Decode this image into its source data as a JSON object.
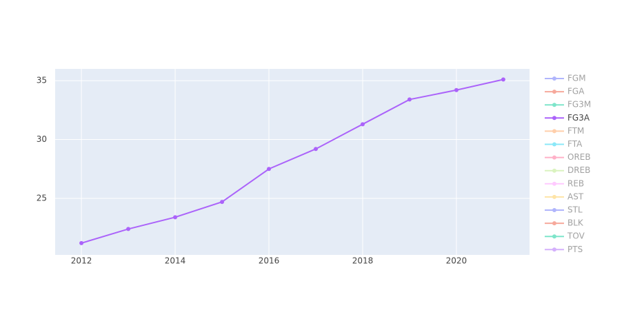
{
  "chart_data": {
    "type": "line",
    "x": [
      2012,
      2013,
      2014,
      2015,
      2016,
      2017,
      2018,
      2019,
      2020,
      2021
    ],
    "series": [
      {
        "name": "FGM",
        "color": "#636efa",
        "visible": false
      },
      {
        "name": "FGA",
        "color": "#EF553B",
        "visible": false
      },
      {
        "name": "FG3M",
        "color": "#00cc96",
        "visible": false
      },
      {
        "name": "FG3A",
        "color": "#ab63fa",
        "visible": true,
        "values": [
          21.2,
          22.4,
          23.4,
          24.7,
          27.5,
          29.2,
          31.3,
          33.4,
          34.2,
          35.1
        ]
      },
      {
        "name": "FTM",
        "color": "#FFA15A",
        "visible": false
      },
      {
        "name": "FTA",
        "color": "#19d3f3",
        "visible": false
      },
      {
        "name": "OREB",
        "color": "#FF6692",
        "visible": false
      },
      {
        "name": "DREB",
        "color": "#B6E880",
        "visible": false
      },
      {
        "name": "REB",
        "color": "#FF97FF",
        "visible": false
      },
      {
        "name": "AST",
        "color": "#FECB52",
        "visible": false
      },
      {
        "name": "STL",
        "color": "#636efa",
        "visible": false
      },
      {
        "name": "BLK",
        "color": "#EF553B",
        "visible": false
      },
      {
        "name": "TOV",
        "color": "#00cc96",
        "visible": false
      },
      {
        "name": "PTS",
        "color": "#ab63fa",
        "visible": false
      }
    ],
    "xlim": [
      2011.44,
      2021.56
    ],
    "xticks": [
      2012,
      2014,
      2016,
      2018,
      2020
    ],
    "ylim": [
      20.2,
      36.0
    ],
    "yticks": [
      25,
      30,
      35
    ],
    "grid": true,
    "legend": "right"
  }
}
